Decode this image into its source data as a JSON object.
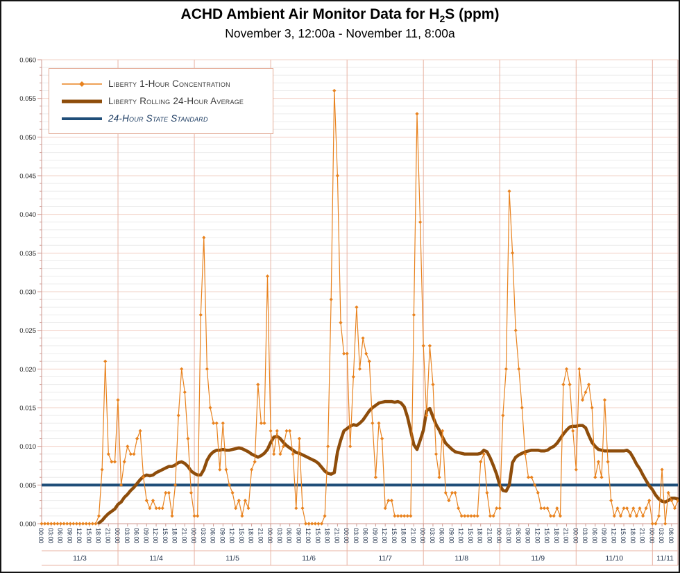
{
  "title": {
    "prefix": "ACHD Ambient Air Monitor Data for H",
    "sub": "2",
    "suffix": "S (ppm)"
  },
  "subtitle": "November 3, 12:00a - November 11, 8:00a",
  "legend": {
    "items": [
      {
        "label": "Liberty 1-Hour Concentration",
        "swatch": "thin-line-with-diamond-marker",
        "color": "#e8821e"
      },
      {
        "label": "Liberty Rolling 24-Hour Average",
        "swatch": "thick-line",
        "color": "#8e4d0b"
      },
      {
        "label": "24-Hour State Standard",
        "swatch": "medium-line",
        "color": "#1f4e79",
        "italic": true
      }
    ]
  },
  "chart_data": {
    "type": "line",
    "title": "ACHD Ambient Air Monitor Data for H2S (ppm)",
    "subtitle": "November 3, 12:00a - November 11, 8:00a",
    "x_axis": "hours from Nov 3 00:00 through Nov 11 08:00, one point per hour",
    "hours": 201,
    "ylim": [
      0,
      0.06
    ],
    "y_tick_step": 0.005,
    "y_tick_labels": [
      "0.000",
      "0.005",
      "0.010",
      "0.015",
      "0.020",
      "0.025",
      "0.030",
      "0.035",
      "0.040",
      "0.045",
      "0.050",
      "0.055",
      "0.060"
    ],
    "x_tick_interval_hours": 3,
    "x_tick_labels": [
      "00:00",
      "03:00",
      "06:00",
      "09:00",
      "12:00",
      "15:00",
      "18:00",
      "21:00",
      "00:00",
      "03:00",
      "06:00",
      "09:00",
      "12:00",
      "15:00",
      "18:00",
      "21:00",
      "00:00",
      "03:00",
      "06:00",
      "09:00",
      "12:00",
      "15:00",
      "18:00",
      "21:00",
      "00:00",
      "03:00",
      "06:00",
      "09:00",
      "12:00",
      "15:00",
      "18:00",
      "21:00",
      "00:00",
      "03:00",
      "06:00",
      "09:00",
      "12:00",
      "15:00",
      "18:00",
      "21:00",
      "00:00",
      "03:00",
      "06:00",
      "09:00",
      "12:00",
      "15:00",
      "18:00",
      "21:00",
      "00:00",
      "03:00",
      "06:00",
      "09:00",
      "12:00",
      "15:00",
      "18:00",
      "21:00",
      "00:00",
      "03:00",
      "06:00",
      "09:00",
      "12:00",
      "15:00",
      "18:00",
      "21:00",
      "00:00",
      "03:00",
      "06:00"
    ],
    "date_labels": [
      "11/3",
      "11/4",
      "11/5",
      "11/6",
      "11/7",
      "11/8",
      "11/9",
      "11/10",
      "11/11"
    ],
    "grid": {
      "minor_every": 0.001,
      "major_every": 0.005,
      "day_separators_every_hours": 24,
      "legend_position": "top-left-inside"
    },
    "colors": {
      "one_hour": "#e8821e",
      "rolling_avg": "#8e4d0b",
      "standard": "#1f4e79",
      "grid_minor": "#ececec",
      "grid_major": "#f2d0c6",
      "day_separator": "#e8b3a3",
      "frame": "#cf9a92",
      "tick_text": "#23344d",
      "y_text": "#1a1a1a"
    },
    "series": [
      {
        "name": "Liberty 1-Hour Concentration",
        "style": "thin+diamond-markers",
        "values": [
          0,
          0,
          0,
          0,
          0,
          0,
          0,
          0,
          0,
          0,
          0,
          0,
          0,
          0,
          0,
          0,
          0,
          0,
          0.001,
          0.007,
          0.021,
          0.009,
          0.008,
          0.008,
          0.016,
          0.005,
          0.008,
          0.01,
          0.009,
          0.009,
          0.011,
          0.012,
          0.006,
          0.003,
          0.002,
          0.003,
          0.002,
          0.002,
          0.002,
          0.004,
          0.004,
          0.001,
          0.005,
          0.014,
          0.02,
          0.017,
          0.011,
          0.004,
          0.001,
          0.001,
          0.027,
          0.037,
          0.02,
          0.015,
          0.013,
          0.013,
          0.007,
          0.013,
          0.007,
          0.005,
          0.004,
          0.002,
          0.003,
          0.001,
          0.003,
          0.002,
          0.007,
          0.008,
          0.018,
          0.013,
          0.013,
          0.032,
          0.012,
          0.009,
          0.012,
          0.009,
          0.01,
          0.012,
          0.012,
          0.009,
          0.002,
          0.011,
          0.002,
          0,
          0,
          0,
          0,
          0,
          0,
          0.001,
          0.01,
          0.029,
          0.056,
          0.045,
          0.026,
          0.022,
          0.022,
          0.01,
          0.019,
          0.028,
          0.02,
          0.024,
          0.022,
          0.021,
          0.013,
          0.006,
          0.013,
          0.011,
          0.002,
          0.003,
          0.003,
          0.001,
          0.001,
          0.001,
          0.001,
          0.001,
          0.001,
          0.027,
          0.053,
          0.039,
          0.023,
          0.014,
          0.023,
          0.018,
          0.009,
          0.006,
          0.012,
          0.004,
          0.003,
          0.004,
          0.004,
          0.002,
          0.001,
          0.001,
          0.001,
          0.001,
          0.001,
          0.001,
          0.008,
          0.009,
          0.004,
          0.001,
          0.001,
          0.002,
          0.002,
          0.014,
          0.02,
          0.043,
          0.035,
          0.025,
          0.02,
          0.015,
          0.009,
          0.006,
          0.006,
          0.005,
          0.004,
          0.002,
          0.002,
          0.002,
          0.001,
          0.001,
          0.002,
          0.001,
          0.018,
          0.02,
          0.018,
          0.012,
          0.007,
          0.02,
          0.016,
          0.017,
          0.018,
          0.015,
          0.006,
          0.008,
          0.006,
          0.016,
          0.008,
          0.003,
          0.001,
          0.002,
          0.001,
          0.002,
          0.002,
          0.001,
          0.002,
          0.001,
          0.002,
          0.001,
          0.002,
          0.003,
          0,
          0,
          0.001,
          0.007,
          0,
          0.004,
          0.003,
          0.002,
          0.003
        ]
      },
      {
        "name": "Liberty Rolling 24-Hour Average",
        "style": "thick",
        "values": [
          null,
          null,
          null,
          null,
          null,
          null,
          null,
          null,
          null,
          null,
          null,
          null,
          null,
          null,
          null,
          null,
          null,
          null,
          0.0001,
          0.0004,
          0.0009,
          0.0013,
          0.0016,
          0.0019,
          0.0025,
          0.0028,
          0.0034,
          0.0038,
          0.0043,
          0.0047,
          0.0052,
          0.0057,
          0.0061,
          0.0063,
          0.0062,
          0.0063,
          0.0066,
          0.0068,
          0.007,
          0.0072,
          0.0074,
          0.0074,
          0.0076,
          0.0079,
          0.008,
          0.0078,
          0.0074,
          0.0068,
          0.0065,
          0.0063,
          0.0063,
          0.007,
          0.0082,
          0.0089,
          0.0093,
          0.0095,
          0.0095,
          0.0096,
          0.0095,
          0.0095,
          0.0096,
          0.0097,
          0.0098,
          0.0097,
          0.0095,
          0.0093,
          0.009,
          0.0088,
          0.0086,
          0.0088,
          0.0091,
          0.0096,
          0.0105,
          0.0112,
          0.0113,
          0.011,
          0.0105,
          0.0101,
          0.0098,
          0.0095,
          0.0092,
          0.0091,
          0.0089,
          0.0087,
          0.0085,
          0.0083,
          0.0081,
          0.0078,
          0.0073,
          0.0068,
          0.0065,
          0.0064,
          0.0066,
          0.0093,
          0.0108,
          0.012,
          0.0123,
          0.0126,
          0.0128,
          0.0127,
          0.013,
          0.0134,
          0.014,
          0.0146,
          0.015,
          0.0153,
          0.0156,
          0.0157,
          0.0158,
          0.0158,
          0.0158,
          0.0157,
          0.0158,
          0.0156,
          0.0151,
          0.0138,
          0.012,
          0.0102,
          0.0096,
          0.0108,
          0.0121,
          0.0146,
          0.0149,
          0.0138,
          0.0128,
          0.0121,
          0.0112,
          0.0104,
          0.01,
          0.0096,
          0.0093,
          0.0092,
          0.0091,
          0.009,
          0.009,
          0.009,
          0.009,
          0.009,
          0.0091,
          0.0095,
          0.0093,
          0.0085,
          0.0075,
          0.0064,
          0.005,
          0.0043,
          0.0042,
          0.005,
          0.0079,
          0.0086,
          0.0089,
          0.0091,
          0.0093,
          0.0094,
          0.0095,
          0.0095,
          0.0095,
          0.0094,
          0.0094,
          0.0095,
          0.0098,
          0.01,
          0.0104,
          0.011,
          0.0116,
          0.0121,
          0.0125,
          0.0126,
          0.0126,
          0.0127,
          0.0127,
          0.0124,
          0.0114,
          0.0105,
          0.01,
          0.0096,
          0.0095,
          0.0094,
          0.0094,
          0.0094,
          0.0094,
          0.0094,
          0.0094,
          0.0094,
          0.0095,
          0.0092,
          0.0085,
          0.0077,
          0.0071,
          0.0063,
          0.0056,
          0.0049,
          0.0044,
          0.0037,
          0.0032,
          0.0029,
          0.0028,
          0.003,
          0.0033,
          0.0033,
          0.0032
        ]
      },
      {
        "name": "24-Hour State Standard",
        "style": "constant",
        "value": 0.005
      }
    ]
  }
}
